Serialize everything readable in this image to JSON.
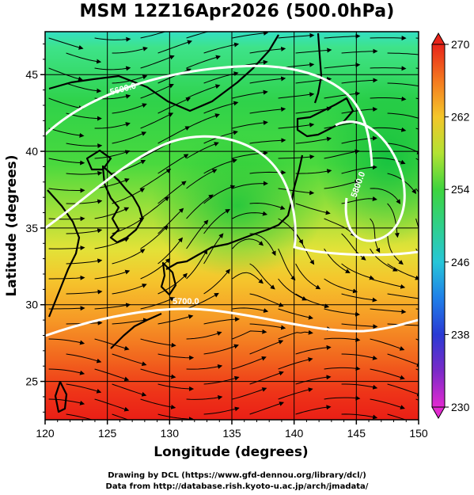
{
  "title": "MSM 12Z16Apr2026 (500.0hPa)",
  "map": {
    "x_axis_label": "Longitude (degrees)",
    "y_axis_label": "Latitude  (degrees)",
    "lon_range": [
      120,
      150
    ],
    "lat_range": [
      22.5,
      47.8
    ],
    "lon_ticks": [
      "120",
      "125",
      "130",
      "135",
      "140",
      "145",
      "150"
    ],
    "lat_ticks": [
      "25",
      "30",
      "35",
      "40",
      "45"
    ],
    "contours": [
      {
        "label": "5600.0",
        "level": 5600
      },
      {
        "label": "5700.0",
        "level": 5700
      },
      {
        "label": "5800.0",
        "level": 5800
      }
    ],
    "colorbar": {
      "min": 230,
      "max": 270,
      "tick_labels": [
        "270",
        "262",
        "254",
        "246",
        "238",
        "230"
      ]
    }
  },
  "credits": {
    "line1": "Drawing by DCL (https://www.gfd-dennou.org/library/dcl/)",
    "line2": "Data from http://database.rish.kyoto-u.ac.jp/arch/jmadata/"
  }
}
